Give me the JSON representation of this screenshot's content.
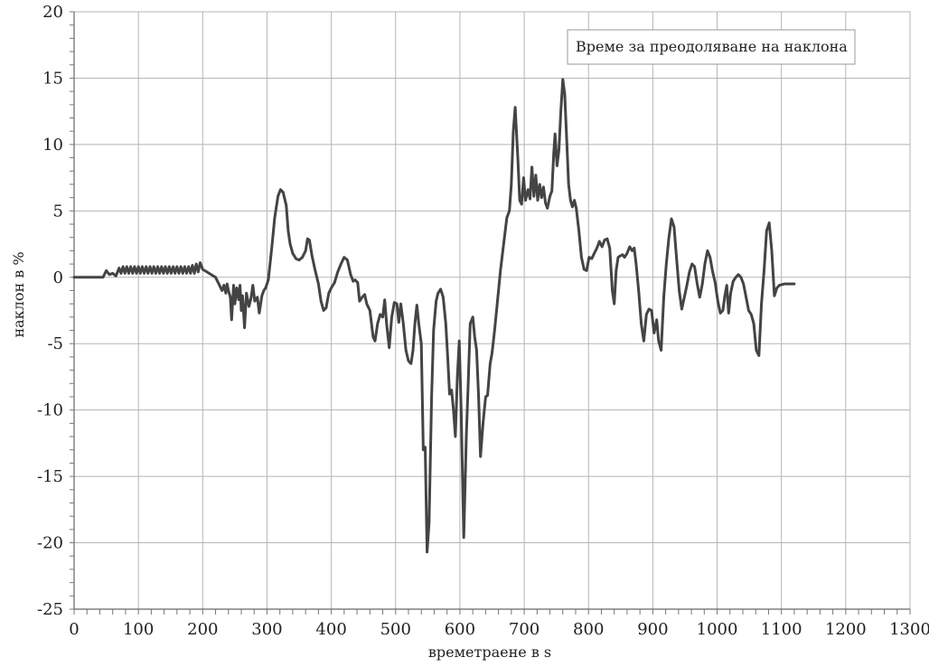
{
  "chart_data": {
    "type": "line",
    "title": "",
    "xlabel": "времетраене в s",
    "ylabel": "наклон в %",
    "xlim": [
      0,
      1300
    ],
    "ylim": [
      -25,
      20
    ],
    "x_ticks": [
      0,
      100,
      200,
      300,
      400,
      500,
      600,
      700,
      800,
      900,
      1000,
      1100,
      1200,
      1300
    ],
    "y_ticks": [
      20,
      15,
      10,
      5,
      0,
      -5,
      -10,
      -15,
      -20,
      -25
    ],
    "grid": true,
    "legend_placement": "top-right",
    "series": [
      {
        "name": "Време за преодоляване на наклона",
        "color": "#444444",
        "points": [
          [
            0,
            0
          ],
          [
            45,
            0
          ],
          [
            50,
            0.5
          ],
          [
            55,
            0.2
          ],
          [
            60,
            0.3
          ],
          [
            65,
            0.1
          ],
          [
            70,
            0.7
          ],
          [
            73,
            0.3
          ],
          [
            76,
            0.8
          ],
          [
            79,
            0.3
          ],
          [
            82,
            0.8
          ],
          [
            85,
            0.3
          ],
          [
            88,
            0.8
          ],
          [
            91,
            0.3
          ],
          [
            94,
            0.8
          ],
          [
            97,
            0.3
          ],
          [
            100,
            0.8
          ],
          [
            103,
            0.3
          ],
          [
            106,
            0.8
          ],
          [
            109,
            0.3
          ],
          [
            112,
            0.8
          ],
          [
            115,
            0.3
          ],
          [
            118,
            0.8
          ],
          [
            121,
            0.3
          ],
          [
            124,
            0.8
          ],
          [
            127,
            0.3
          ],
          [
            130,
            0.8
          ],
          [
            133,
            0.3
          ],
          [
            136,
            0.8
          ],
          [
            139,
            0.3
          ],
          [
            142,
            0.8
          ],
          [
            145,
            0.3
          ],
          [
            148,
            0.8
          ],
          [
            151,
            0.3
          ],
          [
            154,
            0.8
          ],
          [
            157,
            0.3
          ],
          [
            160,
            0.8
          ],
          [
            163,
            0.3
          ],
          [
            166,
            0.8
          ],
          [
            169,
            0.3
          ],
          [
            172,
            0.8
          ],
          [
            175,
            0.3
          ],
          [
            178,
            0.8
          ],
          [
            181,
            0.3
          ],
          [
            184,
            0.9
          ],
          [
            187,
            0.3
          ],
          [
            190,
            1.0
          ],
          [
            193,
            0.4
          ],
          [
            196,
            1.1
          ],
          [
            200,
            0.6
          ],
          [
            210,
            0.3
          ],
          [
            220,
            0
          ],
          [
            225,
            -0.5
          ],
          [
            230,
            -1
          ],
          [
            233,
            -0.6
          ],
          [
            236,
            -1.2
          ],
          [
            238,
            -0.5
          ],
          [
            240,
            -1
          ],
          [
            243,
            -1.5
          ],
          [
            245,
            -3.2
          ],
          [
            248,
            -0.6
          ],
          [
            250,
            -2
          ],
          [
            253,
            -0.8
          ],
          [
            256,
            -1.7
          ],
          [
            258,
            -0.6
          ],
          [
            260,
            -2.5
          ],
          [
            262,
            -1.4
          ],
          [
            265,
            -3.8
          ],
          [
            268,
            -1.2
          ],
          [
            272,
            -2.2
          ],
          [
            275,
            -1.6
          ],
          [
            278,
            -0.6
          ],
          [
            281,
            -1.8
          ],
          [
            285,
            -1.5
          ],
          [
            288,
            -2.7
          ],
          [
            292,
            -1.4
          ],
          [
            295,
            -1
          ],
          [
            298,
            -0.8
          ],
          [
            302,
            -0.2
          ],
          [
            307,
            2
          ],
          [
            312,
            4.5
          ],
          [
            317,
            6.1
          ],
          [
            321,
            6.6
          ],
          [
            325,
            6.4
          ],
          [
            330,
            5.4
          ],
          [
            333,
            3.5
          ],
          [
            336,
            2.5
          ],
          [
            340,
            1.8
          ],
          [
            345,
            1.4
          ],
          [
            350,
            1.3
          ],
          [
            355,
            1.5
          ],
          [
            360,
            2
          ],
          [
            363,
            2.9
          ],
          [
            366,
            2.8
          ],
          [
            370,
            1.6
          ],
          [
            375,
            0.5
          ],
          [
            380,
            -0.5
          ],
          [
            384,
            -1.8
          ],
          [
            388,
            -2.5
          ],
          [
            392,
            -2.3
          ],
          [
            396,
            -1.2
          ],
          [
            400,
            -0.8
          ],
          [
            405,
            -0.4
          ],
          [
            410,
            0.4
          ],
          [
            415,
            1
          ],
          [
            420,
            1.5
          ],
          [
            425,
            1.3
          ],
          [
            430,
            0.2
          ],
          [
            434,
            -0.3
          ],
          [
            437,
            -0.2
          ],
          [
            441,
            -0.4
          ],
          [
            444,
            -1.8
          ],
          [
            448,
            -1.5
          ],
          [
            452,
            -1.3
          ],
          [
            455,
            -2
          ],
          [
            460,
            -2.5
          ],
          [
            465,
            -4.5
          ],
          [
            468,
            -4.8
          ],
          [
            472,
            -3.5
          ],
          [
            476,
            -2.8
          ],
          [
            480,
            -3
          ],
          [
            483,
            -1.7
          ],
          [
            486,
            -3.5
          ],
          [
            490,
            -5.3
          ],
          [
            494,
            -3
          ],
          [
            498,
            -1.9
          ],
          [
            502,
            -2
          ],
          [
            505,
            -3.4
          ],
          [
            508,
            -2
          ],
          [
            512,
            -3.5
          ],
          [
            516,
            -5.5
          ],
          [
            520,
            -6.3
          ],
          [
            524,
            -6.5
          ],
          [
            527,
            -5.5
          ],
          [
            530,
            -3.5
          ],
          [
            533,
            -2.1
          ],
          [
            536,
            -3.5
          ],
          [
            540,
            -5
          ],
          [
            543,
            -13
          ],
          [
            546,
            -12.8
          ],
          [
            549,
            -20.7
          ],
          [
            552,
            -18.5
          ],
          [
            556,
            -9
          ],
          [
            559,
            -4
          ],
          [
            563,
            -1.8
          ],
          [
            566,
            -1.2
          ],
          [
            570,
            -0.9
          ],
          [
            574,
            -1.5
          ],
          [
            578,
            -3.5
          ],
          [
            581,
            -6
          ],
          [
            584,
            -8.8
          ],
          [
            587,
            -8.5
          ],
          [
            590,
            -10
          ],
          [
            593,
            -12
          ],
          [
            596,
            -7.5
          ],
          [
            599,
            -4.8
          ],
          [
            602,
            -10
          ],
          [
            606,
            -19.6
          ],
          [
            610,
            -12
          ],
          [
            613,
            -7.8
          ],
          [
            616,
            -3.5
          ],
          [
            620,
            -3
          ],
          [
            623,
            -4.5
          ],
          [
            626,
            -5.5
          ],
          [
            629,
            -9
          ],
          [
            632,
            -13.5
          ],
          [
            636,
            -11
          ],
          [
            640,
            -9
          ],
          [
            643,
            -8.9
          ],
          [
            647,
            -6.5
          ],
          [
            650,
            -5.7
          ],
          [
            654,
            -4
          ],
          [
            658,
            -2
          ],
          [
            663,
            0.5
          ],
          [
            668,
            2.5
          ],
          [
            673,
            4.5
          ],
          [
            677,
            5
          ],
          [
            680,
            7
          ],
          [
            683,
            11
          ],
          [
            686,
            12.8
          ],
          [
            690,
            9
          ],
          [
            693,
            5.8
          ],
          [
            696,
            5.5
          ],
          [
            699,
            7.5
          ],
          [
            702,
            5.8
          ],
          [
            706,
            6.6
          ],
          [
            709,
            5.9
          ],
          [
            712,
            8.3
          ],
          [
            715,
            6.1
          ],
          [
            718,
            7.7
          ],
          [
            721,
            5.8
          ],
          [
            724,
            7
          ],
          [
            727,
            6
          ],
          [
            730,
            6.8
          ],
          [
            733,
            5.6
          ],
          [
            736,
            5.2
          ],
          [
            740,
            6.1
          ],
          [
            743,
            6.5
          ],
          [
            746,
            9.4
          ],
          [
            748,
            10.8
          ],
          [
            751,
            8.4
          ],
          [
            754,
            9.6
          ],
          [
            757,
            12.5
          ],
          [
            760,
            14.9
          ],
          [
            763,
            13.8
          ],
          [
            766,
            10.5
          ],
          [
            769,
            7
          ],
          [
            772,
            5.8
          ],
          [
            775,
            5.3
          ],
          [
            778,
            5.8
          ],
          [
            781,
            5.2
          ],
          [
            785,
            3.5
          ],
          [
            789,
            1.5
          ],
          [
            793,
            0.6
          ],
          [
            797,
            0.5
          ],
          [
            801,
            1.5
          ],
          [
            805,
            1.4
          ],
          [
            809,
            1.8
          ],
          [
            813,
            2.2
          ],
          [
            817,
            2.7
          ],
          [
            821,
            2.3
          ],
          [
            825,
            2.8
          ],
          [
            829,
            2.9
          ],
          [
            833,
            2.2
          ],
          [
            837,
            -1
          ],
          [
            840,
            -2
          ],
          [
            843,
            0.5
          ],
          [
            846,
            1.5
          ],
          [
            849,
            1.6
          ],
          [
            853,
            1.7
          ],
          [
            856,
            1.5
          ],
          [
            860,
            1.8
          ],
          [
            864,
            2.3
          ],
          [
            868,
            2
          ],
          [
            871,
            2.2
          ],
          [
            874,
            1
          ],
          [
            878,
            -1
          ],
          [
            882,
            -3.5
          ],
          [
            886,
            -4.8
          ],
          [
            890,
            -2.8
          ],
          [
            894,
            -2.4
          ],
          [
            898,
            -2.5
          ],
          [
            902,
            -4.2
          ],
          [
            906,
            -3.2
          ],
          [
            909,
            -4.8
          ],
          [
            913,
            -5.5
          ],
          [
            917,
            -1.5
          ],
          [
            921,
            1
          ],
          [
            925,
            3
          ],
          [
            929,
            4.4
          ],
          [
            933,
            3.8
          ],
          [
            937,
            1.4
          ],
          [
            941,
            -1
          ],
          [
            945,
            -2.4
          ],
          [
            949,
            -1.5
          ],
          [
            953,
            -0.6
          ],
          [
            957,
            0.4
          ],
          [
            961,
            1
          ],
          [
            965,
            0.8
          ],
          [
            969,
            -0.5
          ],
          [
            973,
            -1.5
          ],
          [
            977,
            -0.5
          ],
          [
            981,
            1
          ],
          [
            985,
            2
          ],
          [
            989,
            1.5
          ],
          [
            993,
            0.4
          ],
          [
            997,
            -0.4
          ],
          [
            1001,
            -1.8
          ],
          [
            1005,
            -2.7
          ],
          [
            1009,
            -2.5
          ],
          [
            1012,
            -1.4
          ],
          [
            1015,
            -0.6
          ],
          [
            1018,
            -2.7
          ],
          [
            1021,
            -1.2
          ],
          [
            1025,
            -0.3
          ],
          [
            1029,
            0
          ],
          [
            1033,
            0.2
          ],
          [
            1037,
            0
          ],
          [
            1041,
            -0.5
          ],
          [
            1045,
            -1.5
          ],
          [
            1049,
            -2.5
          ],
          [
            1053,
            -2.8
          ],
          [
            1057,
            -3.5
          ],
          [
            1061,
            -5.5
          ],
          [
            1065,
            -5.9
          ],
          [
            1069,
            -2
          ],
          [
            1073,
            0.5
          ],
          [
            1077,
            3.5
          ],
          [
            1081,
            4.1
          ],
          [
            1085,
            2
          ],
          [
            1089,
            -1.4
          ],
          [
            1093,
            -0.8
          ],
          [
            1097,
            -0.6
          ],
          [
            1105,
            -0.5
          ],
          [
            1113,
            -0.5
          ],
          [
            1120,
            -0.5
          ]
        ]
      }
    ],
    "legend_entry": "Време за преодоляване на наклона"
  }
}
